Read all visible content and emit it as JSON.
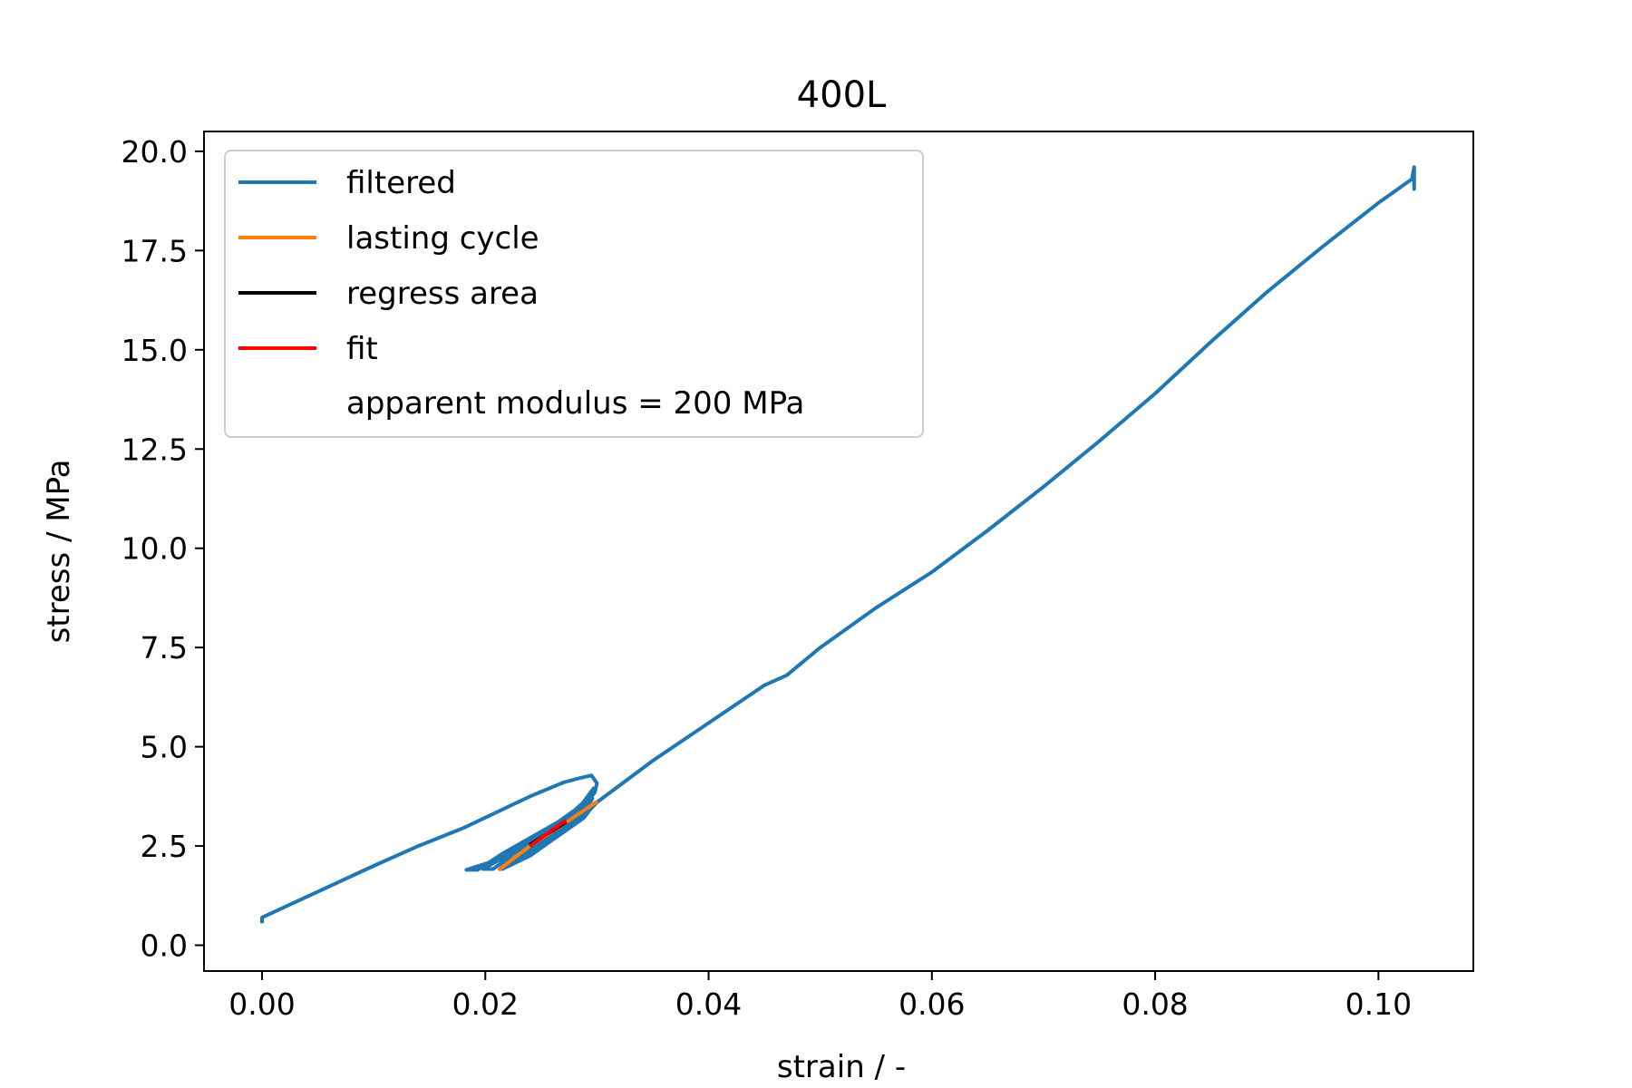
{
  "chart_data": {
    "type": "line",
    "title": "400L",
    "xlabel": "strain / -",
    "ylabel": "stress / MPa",
    "xlim": [
      -0.0052,
      0.1085
    ],
    "ylim": [
      -0.65,
      20.5
    ],
    "xticks": [
      0.0,
      0.02,
      0.04,
      0.06,
      0.08,
      0.1
    ],
    "xtick_labels": [
      "0.00",
      "0.02",
      "0.04",
      "0.06",
      "0.08",
      "0.10"
    ],
    "yticks": [
      0.0,
      2.5,
      5.0,
      7.5,
      10.0,
      12.5,
      15.0,
      17.5,
      20.0
    ],
    "ytick_labels": [
      "0.0",
      "2.5",
      "5.0",
      "7.5",
      "10.0",
      "12.5",
      "15.0",
      "17.5",
      "20.0"
    ],
    "grid": false,
    "legend_position": "top-left",
    "legend_note": "apparent modulus = 200 MPa",
    "series": [
      {
        "name": "filtered",
        "color": "#1f77b4",
        "x": [
          0.0,
          0.0,
          0.005,
          0.01,
          0.014,
          0.018,
          0.021,
          0.024,
          0.027,
          0.0283,
          0.0295,
          0.03,
          0.0298,
          0.0285,
          0.0265,
          0.024,
          0.022,
          0.0205,
          0.0183,
          0.0193,
          0.0215,
          0.024,
          0.0265,
          0.0285,
          0.0297,
          0.0288,
          0.0268,
          0.0245,
          0.0225,
          0.0198,
          0.0207,
          0.023,
          0.0255,
          0.0278,
          0.0296,
          0.0291,
          0.0272,
          0.025,
          0.0232,
          0.0213,
          0.0218,
          0.024,
          0.0262,
          0.0284,
          0.0299,
          0.0288,
          0.026,
          0.024,
          0.0215,
          0.0225,
          0.0248,
          0.0272,
          0.029,
          0.03,
          0.035,
          0.04,
          0.045,
          0.047,
          0.05,
          0.055,
          0.06,
          0.065,
          0.07,
          0.075,
          0.08,
          0.085,
          0.09,
          0.095,
          0.1,
          0.103,
          0.1032,
          0.1032,
          0.1032,
          0.1032
        ],
        "y": [
          0.6,
          0.7,
          1.35,
          2.0,
          2.5,
          2.95,
          3.35,
          3.75,
          4.1,
          4.2,
          4.28,
          4.08,
          3.85,
          3.4,
          3.0,
          2.6,
          2.3,
          2.1,
          1.9,
          1.9,
          2.3,
          2.7,
          3.1,
          3.5,
          3.95,
          3.6,
          3.1,
          2.7,
          2.35,
          1.92,
          1.92,
          2.4,
          2.8,
          3.2,
          3.7,
          3.45,
          3.0,
          2.6,
          2.25,
          1.92,
          2.05,
          2.45,
          2.85,
          3.25,
          3.6,
          3.2,
          2.65,
          2.25,
          1.92,
          2.05,
          2.5,
          2.9,
          3.3,
          3.6,
          4.65,
          5.6,
          6.55,
          6.8,
          7.5,
          8.5,
          9.4,
          10.45,
          11.55,
          12.7,
          13.9,
          15.2,
          16.45,
          17.6,
          18.7,
          19.3,
          19.6,
          19.05,
          19.35,
          19.25
        ]
      },
      {
        "name": "lasting cycle",
        "color": "#ff7f0e",
        "x": [
          0.0213,
          0.024,
          0.027,
          0.0299
        ],
        "y": [
          1.92,
          2.5,
          3.05,
          3.6
        ]
      },
      {
        "name": "regress area",
        "color": "#000000",
        "x": [
          0.0241,
          0.0271
        ],
        "y": [
          2.55,
          3.08
        ]
      },
      {
        "name": "fit",
        "color": "#ff0000",
        "x": [
          0.0241,
          0.0271
        ],
        "y": [
          2.52,
          3.12
        ]
      }
    ]
  }
}
